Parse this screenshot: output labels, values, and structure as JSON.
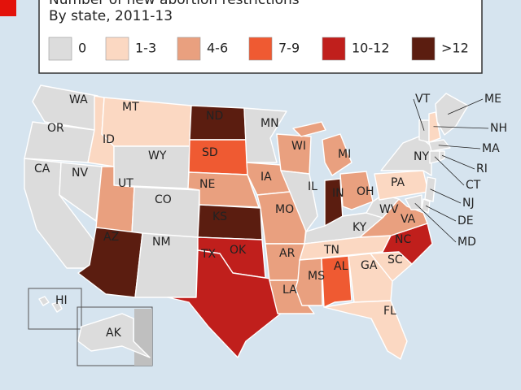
{
  "header": {
    "title": "Number of new abortion restrictions",
    "subtitle": "By state, 2011-13"
  },
  "legend": [
    {
      "label": "0",
      "color": "#dcdcdc"
    },
    {
      "label": "1-3",
      "color": "#fbd8c2"
    },
    {
      "label": "4-6",
      "color": "#e9a07f"
    },
    {
      "label": "7-9",
      "color": "#ef5a32"
    },
    {
      "label": "10-12",
      "color": "#c01f1c"
    },
    {
      "label": ">12",
      "color": "#5b1d10"
    }
  ],
  "states": [
    {
      "code": "WA",
      "bin": "0"
    },
    {
      "code": "OR",
      "bin": "0"
    },
    {
      "code": "CA",
      "bin": "0"
    },
    {
      "code": "NV",
      "bin": "0"
    },
    {
      "code": "ID",
      "bin": "1-3"
    },
    {
      "code": "MT",
      "bin": "1-3"
    },
    {
      "code": "WY",
      "bin": "0"
    },
    {
      "code": "UT",
      "bin": "4-6"
    },
    {
      "code": "CO",
      "bin": "0"
    },
    {
      "code": "AZ",
      "bin": ">12"
    },
    {
      "code": "NM",
      "bin": "0"
    },
    {
      "code": "ND",
      "bin": ">12"
    },
    {
      "code": "SD",
      "bin": "7-9"
    },
    {
      "code": "NE",
      "bin": "4-6"
    },
    {
      "code": "KS",
      "bin": ">12"
    },
    {
      "code": "OK",
      "bin": "10-12"
    },
    {
      "code": "TX",
      "bin": "10-12"
    },
    {
      "code": "MN",
      "bin": "0"
    },
    {
      "code": "IA",
      "bin": "4-6"
    },
    {
      "code": "MO",
      "bin": "4-6"
    },
    {
      "code": "AR",
      "bin": "4-6"
    },
    {
      "code": "LA",
      "bin": "4-6"
    },
    {
      "code": "WI",
      "bin": "4-6"
    },
    {
      "code": "IL",
      "bin": "0"
    },
    {
      "code": "MI",
      "bin": "4-6"
    },
    {
      "code": "IN",
      "bin": ">12"
    },
    {
      "code": "OH",
      "bin": "4-6"
    },
    {
      "code": "KY",
      "bin": "0"
    },
    {
      "code": "TN",
      "bin": "1-3"
    },
    {
      "code": "MS",
      "bin": "4-6"
    },
    {
      "code": "AL",
      "bin": "7-9"
    },
    {
      "code": "GA",
      "bin": "1-3"
    },
    {
      "code": "FL",
      "bin": "1-3"
    },
    {
      "code": "SC",
      "bin": "1-3"
    },
    {
      "code": "NC",
      "bin": "10-12"
    },
    {
      "code": "VA",
      "bin": "4-6"
    },
    {
      "code": "WV",
      "bin": "0"
    },
    {
      "code": "PA",
      "bin": "1-3"
    },
    {
      "code": "NY",
      "bin": "0"
    },
    {
      "code": "NJ",
      "bin": "0"
    },
    {
      "code": "DE",
      "bin": "0"
    },
    {
      "code": "MD",
      "bin": "0"
    },
    {
      "code": "VT",
      "bin": "0"
    },
    {
      "code": "NH",
      "bin": "1-3"
    },
    {
      "code": "ME",
      "bin": "0"
    },
    {
      "code": "MA",
      "bin": "0"
    },
    {
      "code": "CT",
      "bin": "0"
    },
    {
      "code": "RI",
      "bin": "0"
    },
    {
      "code": "AK",
      "bin": "0"
    },
    {
      "code": "HI",
      "bin": "0"
    }
  ]
}
